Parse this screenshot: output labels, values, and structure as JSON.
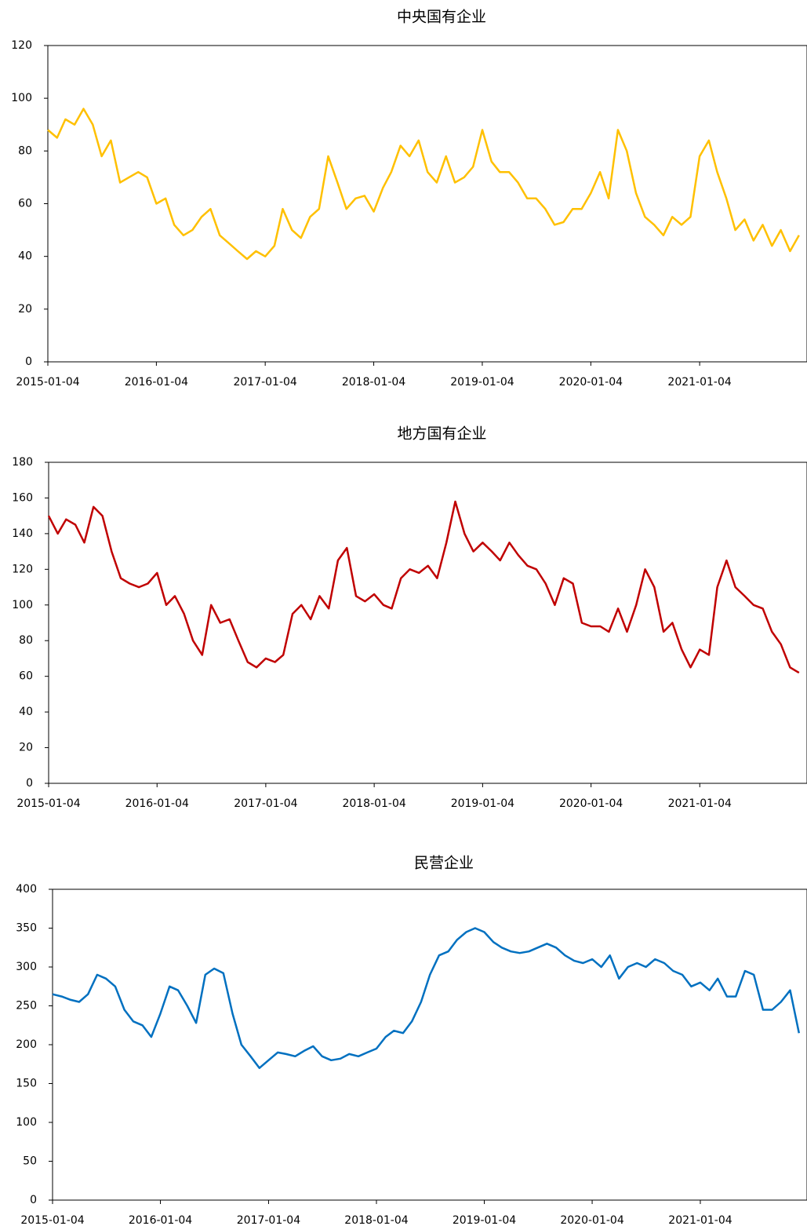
{
  "chart_data": [
    {
      "type": "line",
      "title": "中央国有企业",
      "x": [
        "2015-01-04",
        "2015-02-04",
        "2015-03-04",
        "2015-04-04",
        "2015-05-04",
        "2015-06-04",
        "2015-07-04",
        "2015-08-04",
        "2015-09-04",
        "2015-10-04",
        "2015-11-04",
        "2015-12-04",
        "2016-01-04",
        "2016-02-04",
        "2016-03-04",
        "2016-04-04",
        "2016-05-04",
        "2016-06-04",
        "2016-07-04",
        "2016-08-04",
        "2016-09-04",
        "2016-10-04",
        "2016-11-04",
        "2016-12-04",
        "2017-01-04",
        "2017-02-04",
        "2017-03-04",
        "2017-04-04",
        "2017-05-04",
        "2017-06-04",
        "2017-07-04",
        "2017-08-04",
        "2017-09-04",
        "2017-10-04",
        "2017-11-04",
        "2017-12-04",
        "2018-01-04",
        "2018-02-04",
        "2018-03-04",
        "2018-04-04",
        "2018-05-04",
        "2018-06-04",
        "2018-07-04",
        "2018-08-04",
        "2018-09-04",
        "2018-10-04",
        "2018-11-04",
        "2018-12-04",
        "2019-01-04",
        "2019-02-04",
        "2019-03-04",
        "2019-04-04",
        "2019-05-04",
        "2019-06-04",
        "2019-07-04",
        "2019-08-04",
        "2019-09-04",
        "2019-10-04",
        "2019-11-04",
        "2019-12-04",
        "2020-01-04",
        "2020-02-04",
        "2020-03-04",
        "2020-04-04",
        "2020-05-04",
        "2020-06-04",
        "2020-07-04",
        "2020-08-04",
        "2020-09-04",
        "2020-10-04",
        "2020-11-04",
        "2020-12-04",
        "2021-01-04",
        "2021-02-04",
        "2021-03-04",
        "2021-04-04",
        "2021-05-04",
        "2021-06-04",
        "2021-07-04",
        "2021-08-04",
        "2021-09-04",
        "2021-10-04",
        "2021-11-04",
        "2021-12-04"
      ],
      "series": [
        {
          "name": "中央国有企业",
          "color": "#ffc000",
          "values": [
            88,
            85,
            92,
            90,
            96,
            90,
            78,
            84,
            68,
            70,
            72,
            70,
            60,
            62,
            52,
            48,
            50,
            55,
            58,
            48,
            45,
            42,
            39,
            42,
            40,
            44,
            58,
            50,
            47,
            55,
            58,
            78,
            68,
            58,
            62,
            63,
            57,
            66,
            72,
            82,
            78,
            84,
            72,
            68,
            78,
            68,
            70,
            74,
            88,
            76,
            72,
            72,
            68,
            62,
            62,
            58,
            52,
            53,
            58,
            58,
            64,
            72,
            62,
            88,
            80,
            64,
            55,
            52,
            48,
            55,
            52,
            55,
            78,
            84,
            72,
            62,
            50,
            54,
            46,
            52,
            44,
            50,
            42,
            48
          ]
        }
      ],
      "xlim": [
        "2015-01-04",
        "2021-12-31"
      ],
      "xticks": [
        "2015-01-04",
        "2016-01-04",
        "2017-01-04",
        "2018-01-04",
        "2019-01-04",
        "2020-01-04",
        "2021-01-04"
      ],
      "ylim": [
        0,
        120
      ],
      "yticks": [
        0,
        20,
        40,
        60,
        80,
        100,
        120
      ]
    },
    {
      "type": "line",
      "title": "地方国有企业",
      "x": [
        "2015-01-04",
        "2015-02-04",
        "2015-03-04",
        "2015-04-04",
        "2015-05-04",
        "2015-06-04",
        "2015-07-04",
        "2015-08-04",
        "2015-09-04",
        "2015-10-04",
        "2015-11-04",
        "2015-12-04",
        "2016-01-04",
        "2016-02-04",
        "2016-03-04",
        "2016-04-04",
        "2016-05-04",
        "2016-06-04",
        "2016-07-04",
        "2016-08-04",
        "2016-09-04",
        "2016-10-04",
        "2016-11-04",
        "2016-12-04",
        "2017-01-04",
        "2017-02-04",
        "2017-03-04",
        "2017-04-04",
        "2017-05-04",
        "2017-06-04",
        "2017-07-04",
        "2017-08-04",
        "2017-09-04",
        "2017-10-04",
        "2017-11-04",
        "2017-12-04",
        "2018-01-04",
        "2018-02-04",
        "2018-03-04",
        "2018-04-04",
        "2018-05-04",
        "2018-06-04",
        "2018-07-04",
        "2018-08-04",
        "2018-09-04",
        "2018-10-04",
        "2018-11-04",
        "2018-12-04",
        "2019-01-04",
        "2019-02-04",
        "2019-03-04",
        "2019-04-04",
        "2019-05-04",
        "2019-06-04",
        "2019-07-04",
        "2019-08-04",
        "2019-09-04",
        "2019-10-04",
        "2019-11-04",
        "2019-12-04",
        "2020-01-04",
        "2020-02-04",
        "2020-03-04",
        "2020-04-04",
        "2020-05-04",
        "2020-06-04",
        "2020-07-04",
        "2020-08-04",
        "2020-09-04",
        "2020-10-04",
        "2020-11-04",
        "2020-12-04",
        "2021-01-04",
        "2021-02-04",
        "2021-03-04",
        "2021-04-04",
        "2021-05-04",
        "2021-06-04",
        "2021-07-04",
        "2021-08-04",
        "2021-09-04",
        "2021-10-04",
        "2021-11-04",
        "2021-12-04"
      ],
      "series": [
        {
          "name": "地方国有企业",
          "color": "#c00000",
          "values": [
            150,
            140,
            148,
            145,
            135,
            155,
            150,
            130,
            115,
            112,
            110,
            112,
            118,
            100,
            105,
            95,
            80,
            72,
            100,
            90,
            92,
            80,
            68,
            65,
            70,
            68,
            72,
            95,
            100,
            92,
            105,
            98,
            125,
            132,
            105,
            102,
            106,
            100,
            98,
            115,
            120,
            118,
            122,
            115,
            135,
            158,
            140,
            130,
            135,
            130,
            125,
            135,
            128,
            122,
            120,
            112,
            100,
            115,
            112,
            90,
            88,
            88,
            85,
            98,
            85,
            100,
            120,
            110,
            85,
            90,
            75,
            65,
            75,
            72,
            110,
            125,
            110,
            105,
            100,
            98,
            85,
            78,
            65,
            62
          ]
        }
      ],
      "xlim": [
        "2015-01-04",
        "2021-12-31"
      ],
      "xticks": [
        "2015-01-04",
        "2016-01-04",
        "2017-01-04",
        "2018-01-04",
        "2019-01-04",
        "2020-01-04",
        "2021-01-04"
      ],
      "ylim": [
        0,
        180
      ],
      "yticks": [
        0,
        20,
        40,
        60,
        80,
        100,
        120,
        140,
        160,
        180
      ]
    },
    {
      "type": "line",
      "title": "民营企业",
      "x": [
        "2015-01-04",
        "2015-02-04",
        "2015-03-04",
        "2015-04-04",
        "2015-05-04",
        "2015-06-04",
        "2015-07-04",
        "2015-08-04",
        "2015-09-04",
        "2015-10-04",
        "2015-11-04",
        "2015-12-04",
        "2016-01-04",
        "2016-02-04",
        "2016-03-04",
        "2016-04-04",
        "2016-05-04",
        "2016-06-04",
        "2016-07-04",
        "2016-08-04",
        "2016-09-04",
        "2016-10-04",
        "2016-11-04",
        "2016-12-04",
        "2017-01-04",
        "2017-02-04",
        "2017-03-04",
        "2017-04-04",
        "2017-05-04",
        "2017-06-04",
        "2017-07-04",
        "2017-08-04",
        "2017-09-04",
        "2017-10-04",
        "2017-11-04",
        "2017-12-04",
        "2018-01-04",
        "2018-02-04",
        "2018-03-04",
        "2018-04-04",
        "2018-05-04",
        "2018-06-04",
        "2018-07-04",
        "2018-08-04",
        "2018-09-04",
        "2018-10-04",
        "2018-11-04",
        "2018-12-04",
        "2019-01-04",
        "2019-02-04",
        "2019-03-04",
        "2019-04-04",
        "2019-05-04",
        "2019-06-04",
        "2019-07-04",
        "2019-08-04",
        "2019-09-04",
        "2019-10-04",
        "2019-11-04",
        "2019-12-04",
        "2020-01-04",
        "2020-02-04",
        "2020-03-04",
        "2020-04-04",
        "2020-05-04",
        "2020-06-04",
        "2020-07-04",
        "2020-08-04",
        "2020-09-04",
        "2020-10-04",
        "2020-11-04",
        "2020-12-04",
        "2021-01-04",
        "2021-02-04",
        "2021-03-04",
        "2021-04-04",
        "2021-05-04",
        "2021-06-04",
        "2021-07-04",
        "2021-08-04",
        "2021-09-04",
        "2021-10-04",
        "2021-11-04",
        "2021-12-04"
      ],
      "series": [
        {
          "name": "民营企业",
          "color": "#0070c0",
          "values": [
            265,
            262,
            258,
            255,
            265,
            290,
            285,
            275,
            245,
            230,
            225,
            210,
            240,
            275,
            270,
            250,
            228,
            290,
            298,
            292,
            240,
            200,
            185,
            170,
            180,
            190,
            188,
            185,
            192,
            198,
            185,
            180,
            182,
            188,
            185,
            190,
            195,
            210,
            218,
            215,
            230,
            255,
            290,
            315,
            320,
            335,
            345,
            350,
            345,
            332,
            325,
            320,
            318,
            320,
            325,
            330,
            325,
            315,
            308,
            305,
            310,
            300,
            315,
            285,
            300,
            305,
            300,
            310,
            305,
            295,
            290,
            275,
            280,
            270,
            285,
            262,
            262,
            295,
            290,
            245,
            245,
            255,
            270,
            215
          ]
        }
      ],
      "xlim": [
        "2015-01-04",
        "2021-12-31"
      ],
      "xticks": [
        "2015-01-04",
        "2016-01-04",
        "2017-01-04",
        "2018-01-04",
        "2019-01-04",
        "2020-01-04",
        "2021-01-04"
      ],
      "ylim": [
        0,
        400
      ],
      "yticks": [
        0,
        50,
        100,
        150,
        200,
        250,
        300,
        350,
        400
      ]
    }
  ]
}
